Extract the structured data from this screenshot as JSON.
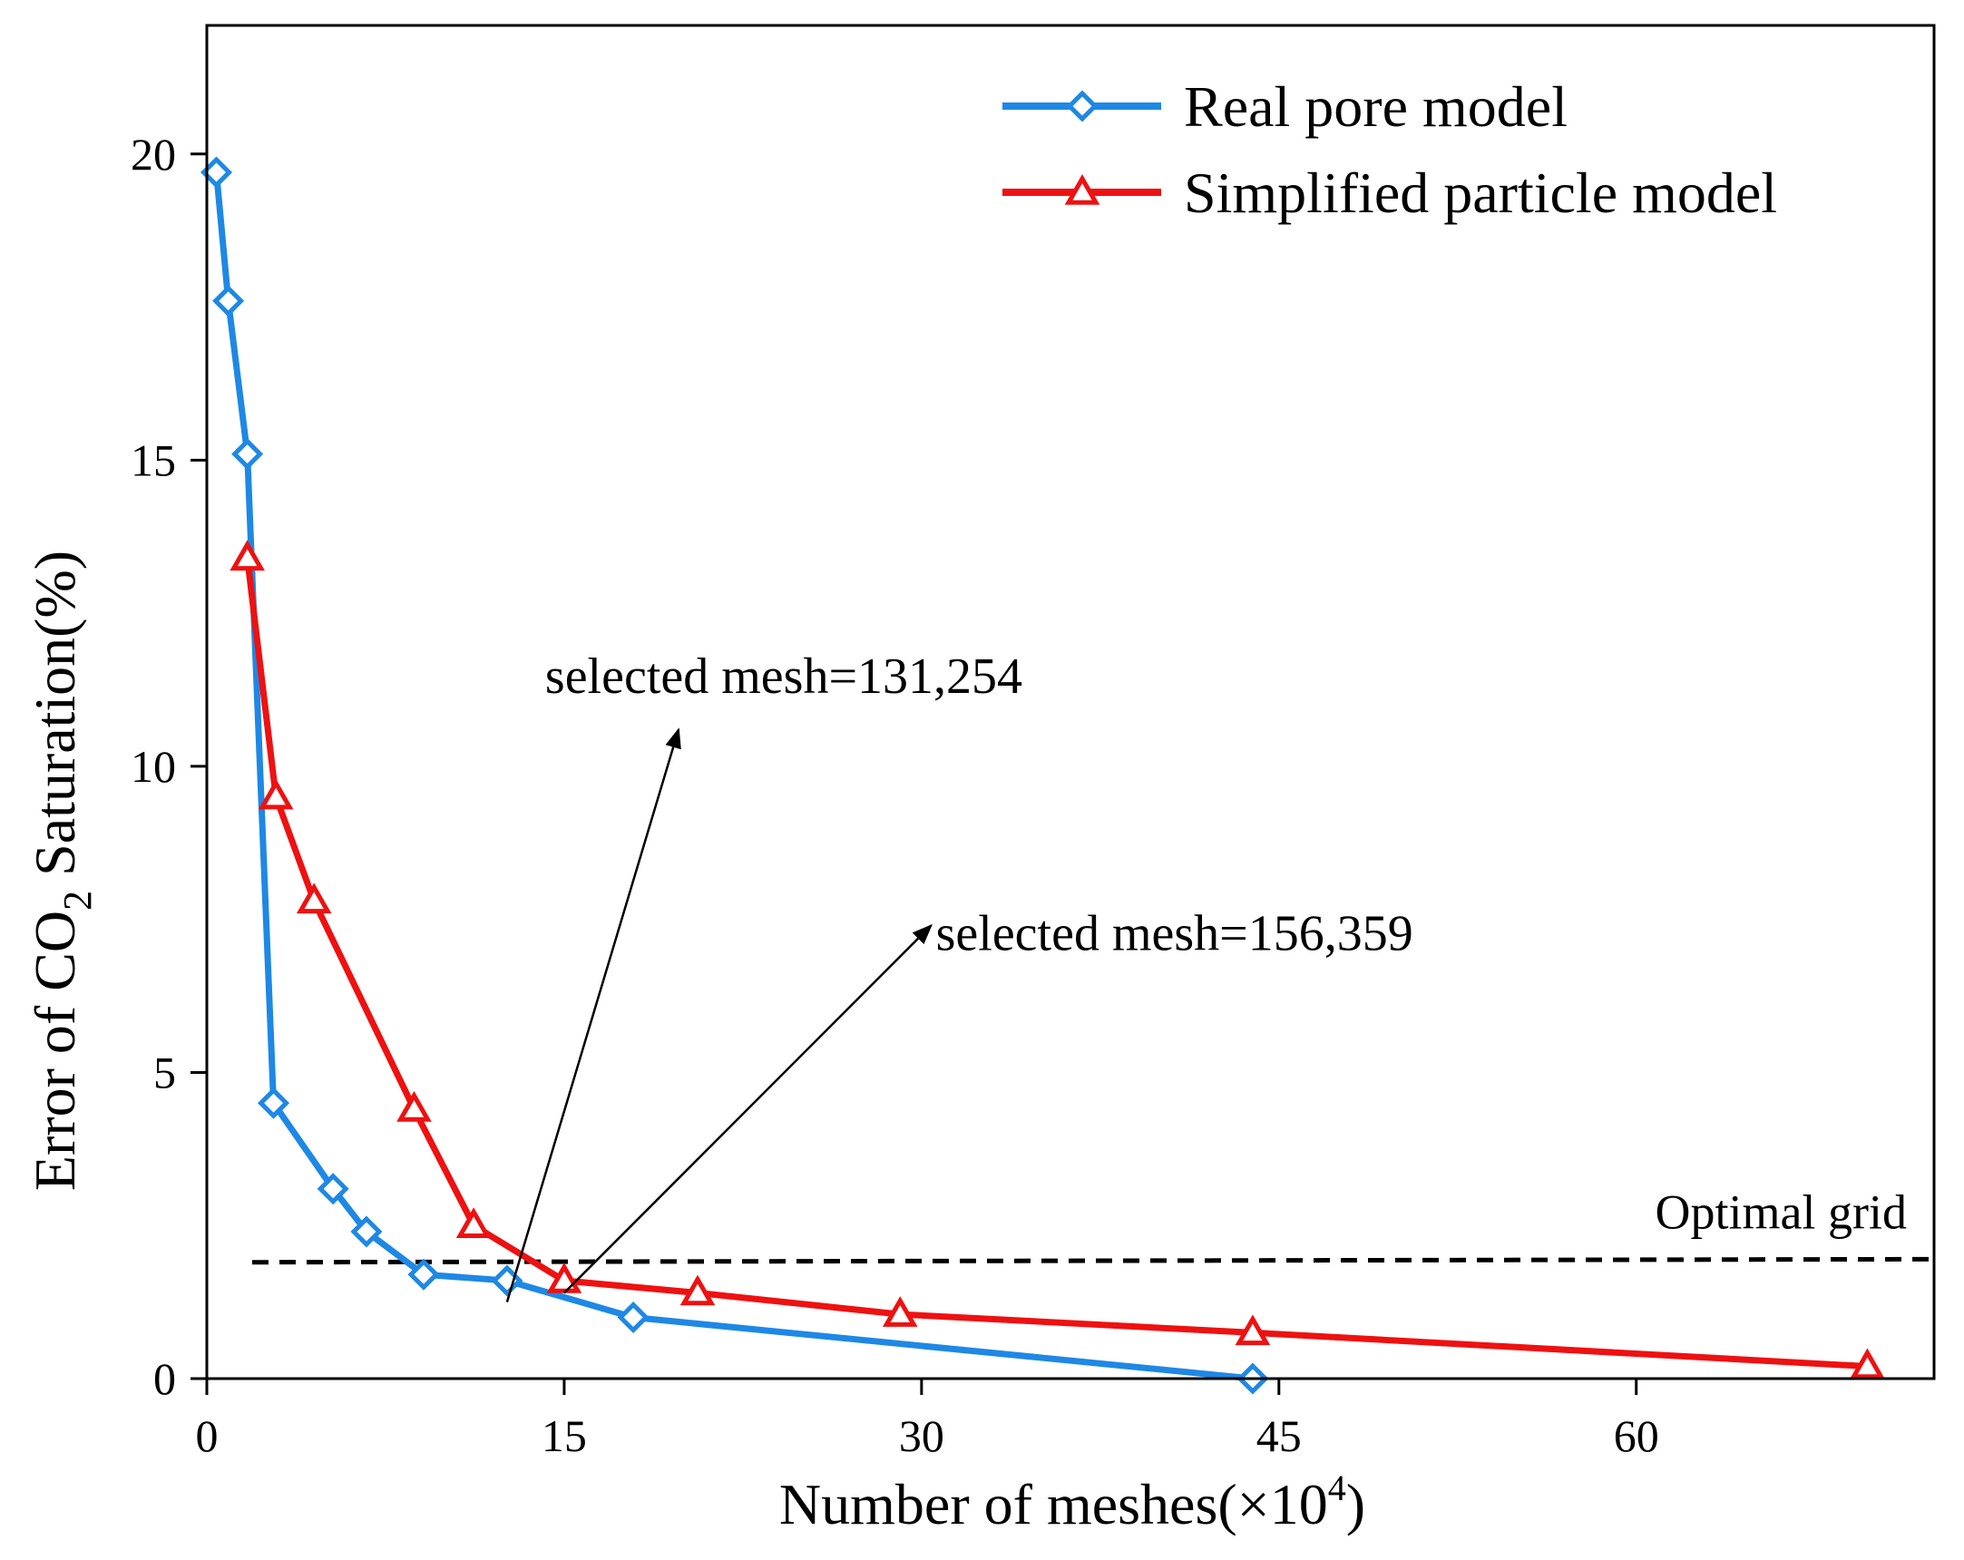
{
  "chart_data": {
    "type": "line",
    "title": "",
    "xlabel": "Number of meshes(×10",
    "xlabel_sup": "4",
    "xlabel_close": ")",
    "ylabel": "Error of CO",
    "ylabel_sub": "2",
    "ylabel_rest": " Saturation(%)",
    "xlim": [
      0,
      72.5
    ],
    "ylim": [
      0,
      22.1
    ],
    "xticks": [
      0,
      15,
      30,
      45,
      60
    ],
    "yticks": [
      0,
      5,
      10,
      15,
      20
    ],
    "legend_position": "top-right",
    "series": [
      {
        "name": "Real pore model",
        "color": "#1e88e5",
        "marker": "diamond",
        "x": [
          0.4,
          0.9,
          1.7,
          2.8,
          5.3,
          6.7,
          9.1,
          12.6,
          17.9,
          43.9
        ],
        "y": [
          19.7,
          17.6,
          15.1,
          4.5,
          3.1,
          2.4,
          1.7,
          1.6,
          1.0,
          0.0
        ]
      },
      {
        "name": "Simplified particle model",
        "color": "#ee1111",
        "marker": "triangle",
        "x": [
          1.7,
          2.9,
          4.5,
          8.7,
          11.2,
          15.0,
          20.6,
          29.1,
          43.9,
          69.7
        ],
        "y": [
          13.4,
          9.5,
          7.8,
          4.4,
          2.5,
          1.6,
          1.4,
          1.05,
          0.75,
          0.2
        ]
      }
    ],
    "reference_line": {
      "label": "Optimal grid",
      "y_start": 1.9,
      "y_end": 1.95,
      "style": "dashed"
    },
    "annotations": [
      {
        "text": "selected mesh=131,254",
        "from": [
          12.6,
          1.25
        ],
        "to": [
          19.8,
          10.6
        ],
        "text_anchor": [
          14.2,
          11.2
        ]
      },
      {
        "text": "selected mesh=156,359",
        "from": [
          15.0,
          1.4
        ],
        "to": [
          30.4,
          7.4
        ],
        "text_anchor": [
          30.6,
          7.0
        ]
      }
    ]
  }
}
